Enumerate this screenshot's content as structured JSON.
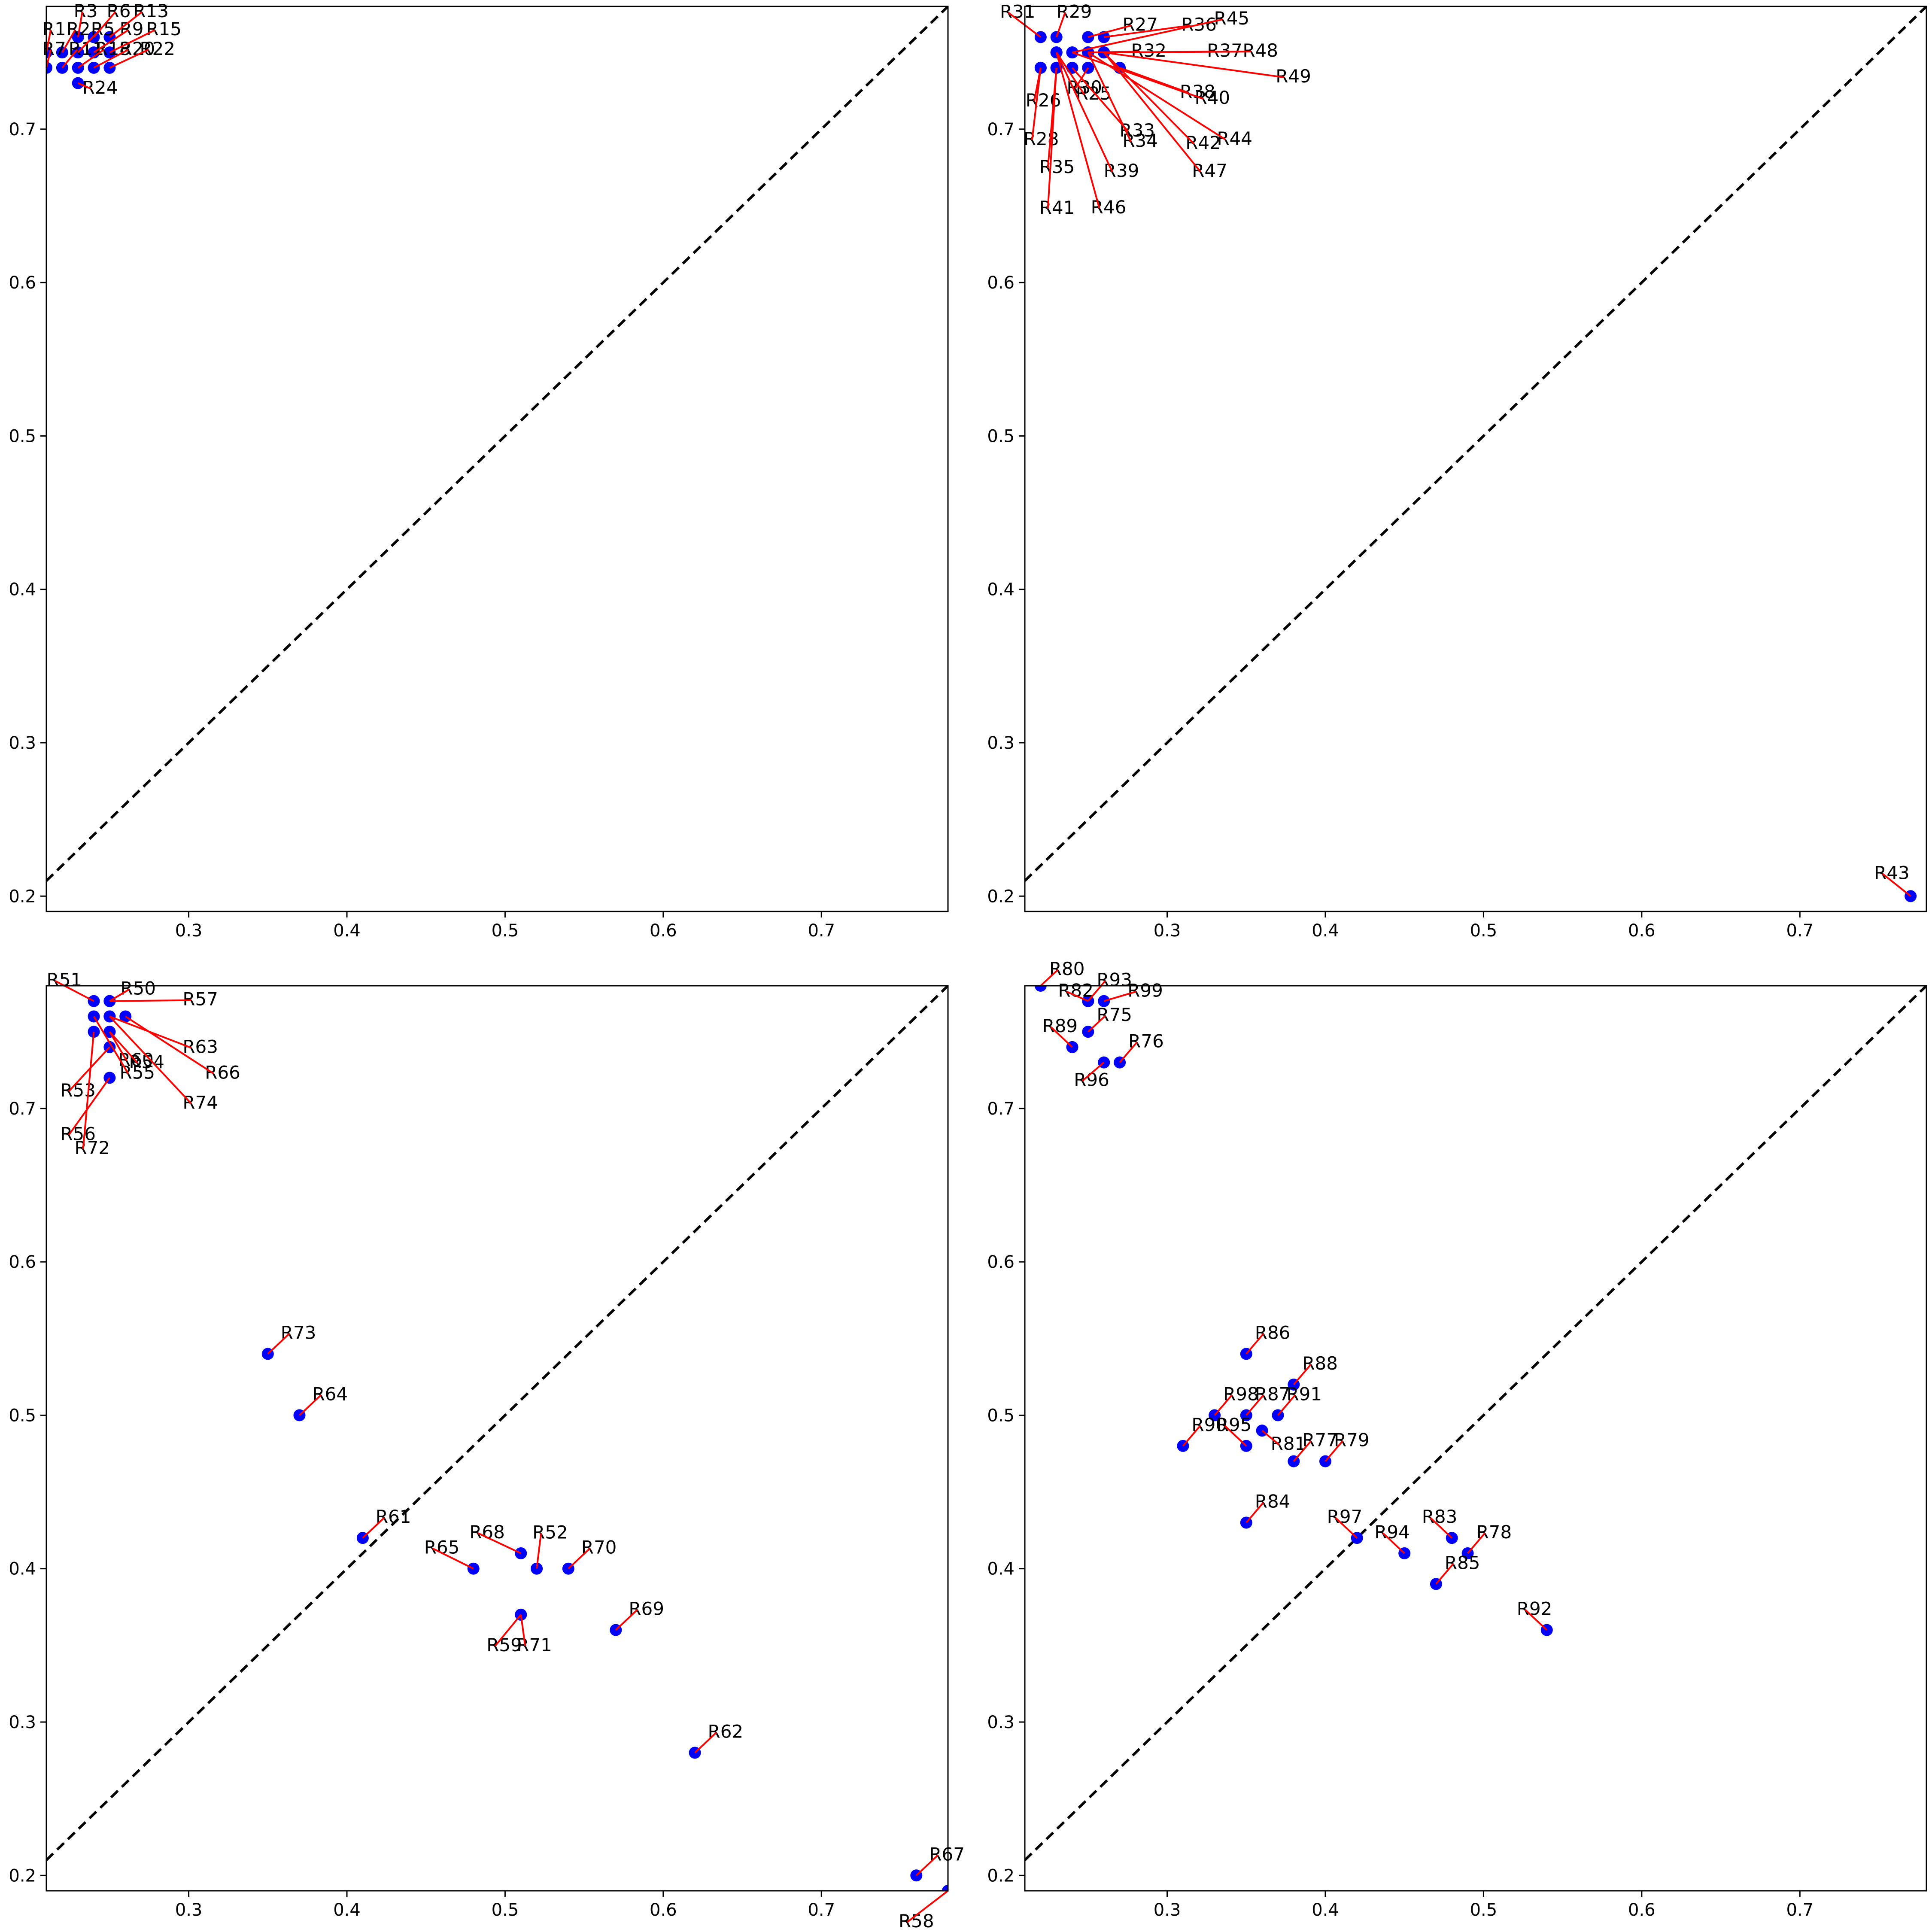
{
  "chart_data": [
    {
      "type": "scatter",
      "title": "",
      "xlabel": "",
      "ylabel": "",
      "xlim": [
        0.21,
        0.78
      ],
      "ylim": [
        0.19,
        0.78
      ],
      "xticks": [
        "0.3",
        "0.4",
        "0.5",
        "0.6",
        "0.7"
      ],
      "yticks": [
        "0.2",
        "0.3",
        "0.4",
        "0.5",
        "0.6",
        "0.7"
      ],
      "diagonal": "y = x",
      "point_color": "#0000ff",
      "leader_color": "#ff0000",
      "points": [
        {
          "label": "R3",
          "x": 0.23,
          "y": 0.76
        },
        {
          "label": "R6",
          "x": 0.24,
          "y": 0.76
        },
        {
          "label": "R13",
          "x": 0.25,
          "y": 0.76
        },
        {
          "label": "R1",
          "x": 0.21,
          "y": 0.75
        },
        {
          "label": "R2",
          "x": 0.22,
          "y": 0.75
        },
        {
          "label": "R5",
          "x": 0.23,
          "y": 0.75
        },
        {
          "label": "R9",
          "x": 0.24,
          "y": 0.75
        },
        {
          "label": "R15",
          "x": 0.25,
          "y": 0.75
        },
        {
          "label": "R7",
          "x": 0.21,
          "y": 0.74
        },
        {
          "label": "R11",
          "x": 0.22,
          "y": 0.74
        },
        {
          "label": "R18",
          "x": 0.23,
          "y": 0.74
        },
        {
          "label": "R20",
          "x": 0.24,
          "y": 0.74
        },
        {
          "label": "R22",
          "x": 0.25,
          "y": 0.74
        },
        {
          "label": "R24",
          "x": 0.23,
          "y": 0.73
        }
      ]
    },
    {
      "type": "scatter",
      "title": "",
      "xlabel": "",
      "ylabel": "",
      "xlim": [
        0.21,
        0.78
      ],
      "ylim": [
        0.19,
        0.78
      ],
      "xticks": [
        "0.3",
        "0.4",
        "0.5",
        "0.6",
        "0.7"
      ],
      "yticks": [
        "0.2",
        "0.3",
        "0.4",
        "0.5",
        "0.6",
        "0.7"
      ],
      "diagonal": "y = x",
      "point_color": "#0000ff",
      "leader_color": "#ff0000",
      "points": [
        {
          "label": "R31",
          "x": 0.22,
          "y": 0.76
        },
        {
          "label": "R29",
          "x": 0.23,
          "y": 0.76
        },
        {
          "label": "R27",
          "x": 0.25,
          "y": 0.76
        },
        {
          "label": "R36",
          "x": 0.26,
          "y": 0.76
        },
        {
          "label": "R45",
          "x": 0.24,
          "y": 0.75
        },
        {
          "label": "R32",
          "x": 0.25,
          "y": 0.75
        },
        {
          "label": "R37",
          "x": 0.26,
          "y": 0.75
        },
        {
          "label": "R48",
          "x": 0.25,
          "y": 0.75
        },
        {
          "label": "R49",
          "x": 0.26,
          "y": 0.75
        },
        {
          "label": "R38",
          "x": 0.27,
          "y": 0.74
        },
        {
          "label": "R30",
          "x": 0.25,
          "y": 0.74
        },
        {
          "label": "R40",
          "x": 0.24,
          "y": 0.75
        },
        {
          "label": "R26",
          "x": 0.22,
          "y": 0.74
        },
        {
          "label": "R25",
          "x": 0.23,
          "y": 0.75
        },
        {
          "label": "R33",
          "x": 0.24,
          "y": 0.74
        },
        {
          "label": "R44",
          "x": 0.25,
          "y": 0.75
        },
        {
          "label": "R28",
          "x": 0.22,
          "y": 0.74
        },
        {
          "label": "R34",
          "x": 0.25,
          "y": 0.75
        },
        {
          "label": "R42",
          "x": 0.26,
          "y": 0.75
        },
        {
          "label": "R35",
          "x": 0.23,
          "y": 0.74
        },
        {
          "label": "R39",
          "x": 0.23,
          "y": 0.75
        },
        {
          "label": "R47",
          "x": 0.26,
          "y": 0.75
        },
        {
          "label": "R41",
          "x": 0.23,
          "y": 0.74
        },
        {
          "label": "R46",
          "x": 0.23,
          "y": 0.75
        },
        {
          "label": "R43",
          "x": 0.77,
          "y": 0.2
        }
      ]
    },
    {
      "type": "scatter",
      "title": "",
      "xlabel": "",
      "ylabel": "",
      "xlim": [
        0.21,
        0.78
      ],
      "ylim": [
        0.19,
        0.78
      ],
      "xticks": [
        "0.3",
        "0.4",
        "0.5",
        "0.6",
        "0.7"
      ],
      "yticks": [
        "0.2",
        "0.3",
        "0.4",
        "0.5",
        "0.6",
        "0.7"
      ],
      "diagonal": "y = x",
      "point_color": "#0000ff",
      "leader_color": "#ff0000",
      "points": [
        {
          "label": "R51",
          "x": 0.24,
          "y": 0.77
        },
        {
          "label": "R50",
          "x": 0.25,
          "y": 0.77
        },
        {
          "label": "R57",
          "x": 0.25,
          "y": 0.77
        },
        {
          "label": "R63",
          "x": 0.25,
          "y": 0.76
        },
        {
          "label": "R66",
          "x": 0.26,
          "y": 0.76
        },
        {
          "label": "R54",
          "x": 0.25,
          "y": 0.75
        },
        {
          "label": "R55",
          "x": 0.24,
          "y": 0.76
        },
        {
          "label": "R74",
          "x": 0.25,
          "y": 0.76
        },
        {
          "label": "R53",
          "x": 0.25,
          "y": 0.74
        },
        {
          "label": "R56",
          "x": 0.25,
          "y": 0.72
        },
        {
          "label": "R60",
          "x": 0.25,
          "y": 0.75
        },
        {
          "label": "R72",
          "x": 0.24,
          "y": 0.75
        },
        {
          "label": "R73",
          "x": 0.35,
          "y": 0.54
        },
        {
          "label": "R64",
          "x": 0.37,
          "y": 0.5
        },
        {
          "label": "R61",
          "x": 0.41,
          "y": 0.42
        },
        {
          "label": "R65",
          "x": 0.48,
          "y": 0.4
        },
        {
          "label": "R68",
          "x": 0.51,
          "y": 0.41
        },
        {
          "label": "R52",
          "x": 0.52,
          "y": 0.4
        },
        {
          "label": "R70",
          "x": 0.54,
          "y": 0.4
        },
        {
          "label": "R59",
          "x": 0.51,
          "y": 0.37
        },
        {
          "label": "R71",
          "x": 0.51,
          "y": 0.37
        },
        {
          "label": "R69",
          "x": 0.57,
          "y": 0.36
        },
        {
          "label": "R62",
          "x": 0.62,
          "y": 0.28
        },
        {
          "label": "R67",
          "x": 0.76,
          "y": 0.2
        },
        {
          "label": "R58",
          "x": 0.78,
          "y": 0.19
        }
      ]
    },
    {
      "type": "scatter",
      "title": "",
      "xlabel": "",
      "ylabel": "",
      "xlim": [
        0.21,
        0.78
      ],
      "ylim": [
        0.19,
        0.78
      ],
      "xticks": [
        "0.3",
        "0.4",
        "0.5",
        "0.6",
        "0.7"
      ],
      "yticks": [
        "0.2",
        "0.3",
        "0.4",
        "0.5",
        "0.6",
        "0.7"
      ],
      "diagonal": "y = x",
      "point_color": "#0000ff",
      "leader_color": "#ff0000",
      "points": [
        {
          "label": "R80",
          "x": 0.22,
          "y": 0.78
        },
        {
          "label": "R93",
          "x": 0.25,
          "y": 0.77
        },
        {
          "label": "R82",
          "x": 0.25,
          "y": 0.77
        },
        {
          "label": "R99",
          "x": 0.26,
          "y": 0.77
        },
        {
          "label": "R75",
          "x": 0.25,
          "y": 0.75
        },
        {
          "label": "R89",
          "x": 0.24,
          "y": 0.74
        },
        {
          "label": "R96",
          "x": 0.26,
          "y": 0.73
        },
        {
          "label": "R76",
          "x": 0.27,
          "y": 0.73
        },
        {
          "label": "R86",
          "x": 0.35,
          "y": 0.54
        },
        {
          "label": "R88",
          "x": 0.38,
          "y": 0.52
        },
        {
          "label": "R98",
          "x": 0.33,
          "y": 0.5
        },
        {
          "label": "R87",
          "x": 0.35,
          "y": 0.5
        },
        {
          "label": "R91",
          "x": 0.37,
          "y": 0.5
        },
        {
          "label": "R90",
          "x": 0.31,
          "y": 0.48
        },
        {
          "label": "R95",
          "x": 0.35,
          "y": 0.48
        },
        {
          "label": "R81",
          "x": 0.36,
          "y": 0.49
        },
        {
          "label": "R77",
          "x": 0.38,
          "y": 0.47
        },
        {
          "label": "R79",
          "x": 0.4,
          "y": 0.47
        },
        {
          "label": "R84",
          "x": 0.35,
          "y": 0.43
        },
        {
          "label": "R97",
          "x": 0.42,
          "y": 0.42
        },
        {
          "label": "R94",
          "x": 0.45,
          "y": 0.41
        },
        {
          "label": "R83",
          "x": 0.48,
          "y": 0.42
        },
        {
          "label": "R78",
          "x": 0.49,
          "y": 0.41
        },
        {
          "label": "R85",
          "x": 0.47,
          "y": 0.39
        },
        {
          "label": "R92",
          "x": 0.54,
          "y": 0.36
        }
      ]
    }
  ]
}
